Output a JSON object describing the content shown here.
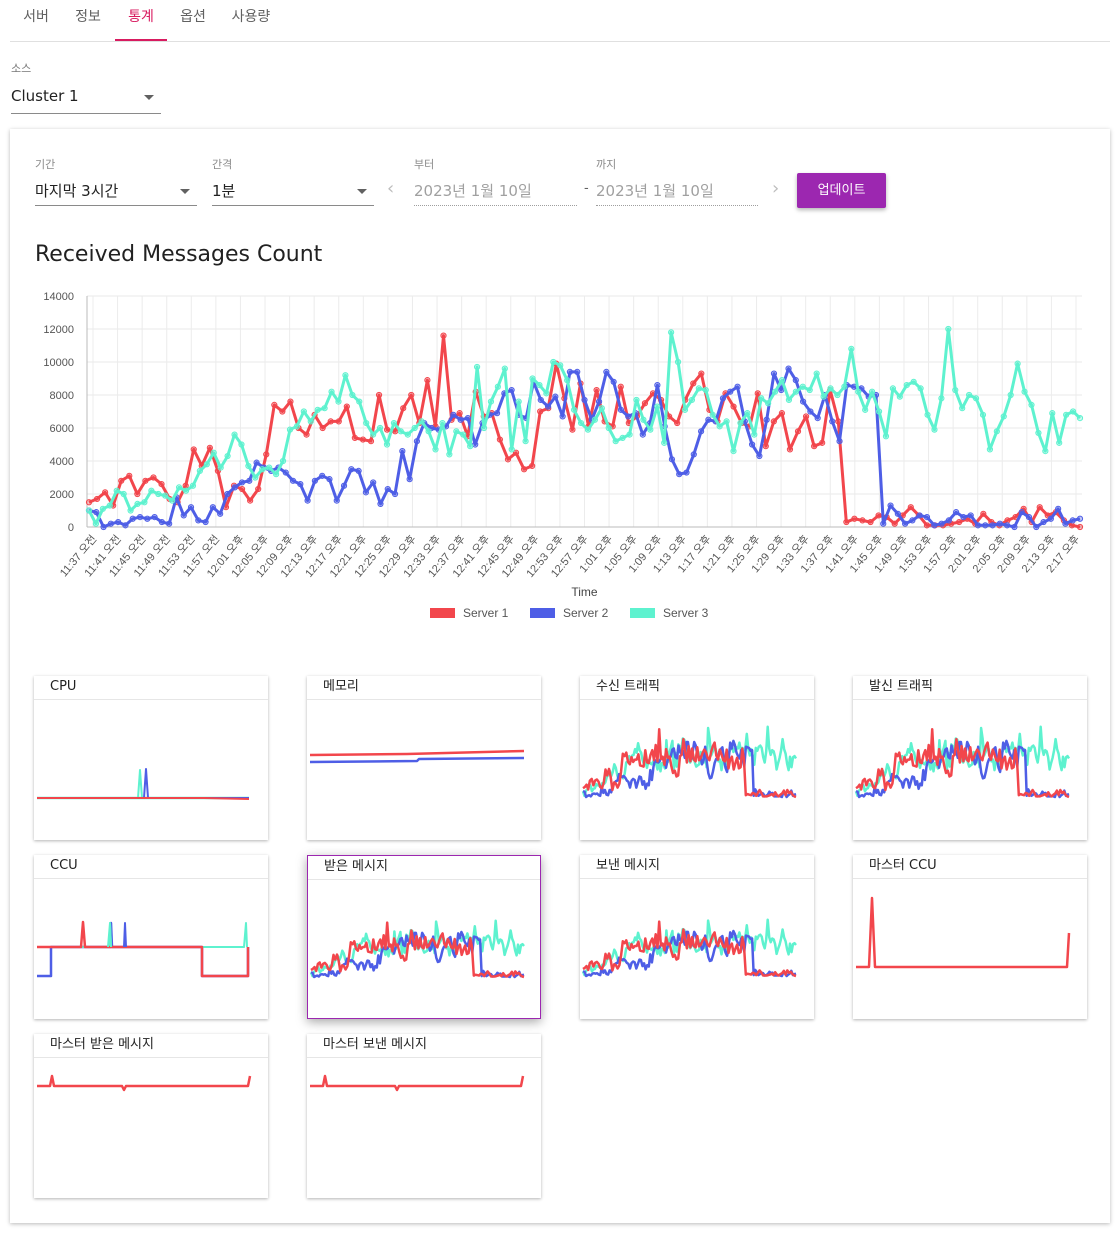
{
  "tabs": [
    {
      "label": "서버"
    },
    {
      "label": "정보"
    },
    {
      "label": "통계",
      "active": true
    },
    {
      "label": "옵션"
    },
    {
      "label": "사용량"
    }
  ],
  "source": {
    "label": "소스",
    "value": "Cluster 1"
  },
  "filters": {
    "period_label": "기간",
    "period_value": "마지막 3시간",
    "interval_label": "간격",
    "interval_value": "1분",
    "from_label": "부터",
    "from_value": "2023년 1월 10일",
    "to_label": "까지",
    "to_value": "2023년 1월 10일",
    "range_separator": "-",
    "update_button": "업데이트"
  },
  "colors": {
    "server1": "#f2464c",
    "server2": "#4e5ee6",
    "server3": "#5ef2cf",
    "accent": "#9c27b0",
    "active_tab": "#d81b60"
  },
  "chart_data": {
    "type": "line",
    "title": "Received Messages Count",
    "xlabel": "Time",
    "ylabel": "",
    "ylim": [
      0,
      14000
    ],
    "yticks": [
      "0",
      "2000",
      "4000",
      "6000",
      "8000",
      "10000",
      "12000",
      "14000"
    ],
    "grid": true,
    "legend_position": "bottom",
    "x_tick_labels": [
      "11:37 오전",
      "11:41 오전",
      "11:45 오전",
      "11:49 오전",
      "11:53 오전",
      "11:57 오전",
      "12:01 오후",
      "12:05 오후",
      "12:09 오후",
      "12:13 오후",
      "12:17 오후",
      "12:21 오후",
      "12:25 오후",
      "12:29 오후",
      "12:33 오후",
      "12:37 오후",
      "12:41 오후",
      "12:45 오후",
      "12:49 오후",
      "12:53 오후",
      "12:57 오후",
      "1:01 오후",
      "1:05 오후",
      "1:09 오후",
      "1:13 오후",
      "1:17 오후",
      "1:21 오후",
      "1:25 오후",
      "1:29 오후",
      "1:33 오후",
      "1:37 오후",
      "1:41 오후",
      "1:45 오후",
      "1:49 오후",
      "1:53 오후",
      "1:57 오후",
      "2:01 오후",
      "2:05 오후",
      "2:09 오후",
      "2:13 오후",
      "2:17 오후"
    ],
    "series": [
      {
        "name": "Server 1",
        "color": "#f2464c",
        "values": [
          1500,
          1700,
          2100,
          1300,
          2800,
          3100,
          2000,
          2800,
          3000,
          2600,
          1700,
          1500,
          2500,
          4700,
          3700,
          4800,
          3400,
          1200,
          2500,
          2300,
          1600,
          2300,
          4400,
          7400,
          7000,
          7600,
          6000,
          5600,
          6800,
          6000,
          6400,
          6400,
          7300,
          5400,
          5300,
          5200,
          8000,
          5900,
          5800,
          7200,
          8000,
          6300,
          8900,
          6100,
          11600,
          6500,
          6900,
          5500,
          8200,
          6700,
          6900,
          5300,
          4100,
          4500,
          3500,
          3700,
          7000,
          7200,
          9900,
          7800,
          5900,
          8700,
          6100,
          8300,
          6400,
          6100,
          8500,
          6300,
          6700,
          7500,
          8100,
          7700,
          6700,
          6300,
          7700,
          8700,
          9300,
          7100,
          6400,
          8100,
          7300,
          6300,
          6100,
          8100,
          4900,
          6400,
          6900,
          4700,
          5800,
          6700,
          4900,
          5100,
          8300,
          6400,
          300,
          500,
          400,
          300,
          700,
          600,
          200,
          700,
          1200,
          700,
          100,
          100,
          100,
          200,
          300,
          500,
          200,
          800,
          300,
          100,
          400,
          600,
          1100,
          300,
          1200,
          700,
          900,
          400,
          100,
          0
        ]
      },
      {
        "name": "Server 2",
        "color": "#4e5ee6",
        "values": [
          1000,
          900,
          0,
          200,
          300,
          100,
          500,
          600,
          500,
          600,
          300,
          200,
          1800,
          700,
          1200,
          400,
          300,
          1200,
          800,
          2000,
          2400,
          2700,
          2800,
          3900,
          3600,
          3400,
          3600,
          3300,
          2800,
          2600,
          1600,
          2800,
          3100,
          2900,
          1600,
          2500,
          3500,
          3400,
          2100,
          2700,
          1400,
          2300,
          2000,
          4600,
          2900,
          5200,
          6300,
          6000,
          5900,
          6100,
          6800,
          6500,
          6600,
          5000,
          6300,
          6800,
          6900,
          8100,
          8300,
          6800,
          6600,
          8800,
          7700,
          7300,
          7900,
          6700,
          9400,
          9400,
          7700,
          6500,
          7600,
          9400,
          8800,
          7100,
          6700,
          6900,
          5600,
          6300,
          8600,
          6100,
          4100,
          3200,
          3300,
          4400,
          5800,
          6500,
          6400,
          7800,
          8200,
          8500,
          6400,
          5000,
          4300,
          6500,
          9300,
          8300,
          9600,
          8900,
          7600,
          7000,
          6600,
          8000,
          6400,
          5200,
          8600,
          8500,
          8400,
          7900,
          8000,
          200,
          1300,
          800,
          200,
          400,
          700,
          600,
          100,
          200,
          400,
          900,
          600,
          700,
          100,
          100,
          100,
          200,
          100,
          0,
          900,
          600,
          0,
          300,
          500,
          1100,
          200,
          400,
          500
        ]
      },
      {
        "name": "Server 3",
        "color": "#5ef2cf",
        "values": [
          1000,
          200,
          1100,
          1300,
          2200,
          2000,
          1000,
          1400,
          1500,
          2200,
          2000,
          1900,
          1600,
          2400,
          2200,
          2500,
          3400,
          3800,
          4500,
          3600,
          4300,
          5600,
          5000,
          3700,
          3000,
          3500,
          3600,
          3200,
          4000,
          5900,
          6100,
          7000,
          6400,
          7100,
          7200,
          8200,
          7600,
          9200,
          8000,
          7600,
          6300,
          5600,
          6000,
          5000,
          6300,
          5800,
          5600,
          6000,
          6400,
          5800,
          4700,
          6300,
          4400,
          5800,
          5600,
          4900,
          9700,
          6000,
          7600,
          8500,
          9600,
          4700,
          7600,
          5200,
          9000,
          8600,
          8100,
          10000,
          9800,
          8900,
          7100,
          6300,
          5900,
          6500,
          7200,
          6000,
          5200,
          5400,
          5600,
          7700,
          6500,
          5900,
          7300,
          5100,
          11800,
          10000,
          7100,
          7700,
          8400,
          8300,
          6800,
          6100,
          6400,
          4600,
          6300,
          6900,
          5600,
          7800,
          7500,
          8200,
          8900,
          7700,
          8200,
          8500,
          8300,
          9300,
          7900,
          8400,
          8000,
          8500,
          10800,
          8200,
          7100,
          8200,
          7000,
          5500,
          8400,
          7900,
          8600,
          8800,
          8400,
          6800,
          5900,
          7800,
          12000,
          8300,
          7200,
          8000,
          7800,
          6800,
          4700,
          5800,
          6700,
          8000,
          9900,
          8200,
          7400,
          5700,
          4600,
          6900,
          5100,
          6800,
          7000,
          6600
        ]
      }
    ]
  },
  "mini_charts": [
    {
      "title": "CPU"
    },
    {
      "title": "메모리"
    },
    {
      "title": "수신 트래픽"
    },
    {
      "title": "발신 트래픽"
    },
    {
      "title": "CCU"
    },
    {
      "title": "받은 메시지",
      "selected": true
    },
    {
      "title": "보낸 메시지"
    },
    {
      "title": "마스터 CCU"
    },
    {
      "title": "마스터 받은 메시지"
    },
    {
      "title": "마스터 보낸 메시지"
    }
  ]
}
